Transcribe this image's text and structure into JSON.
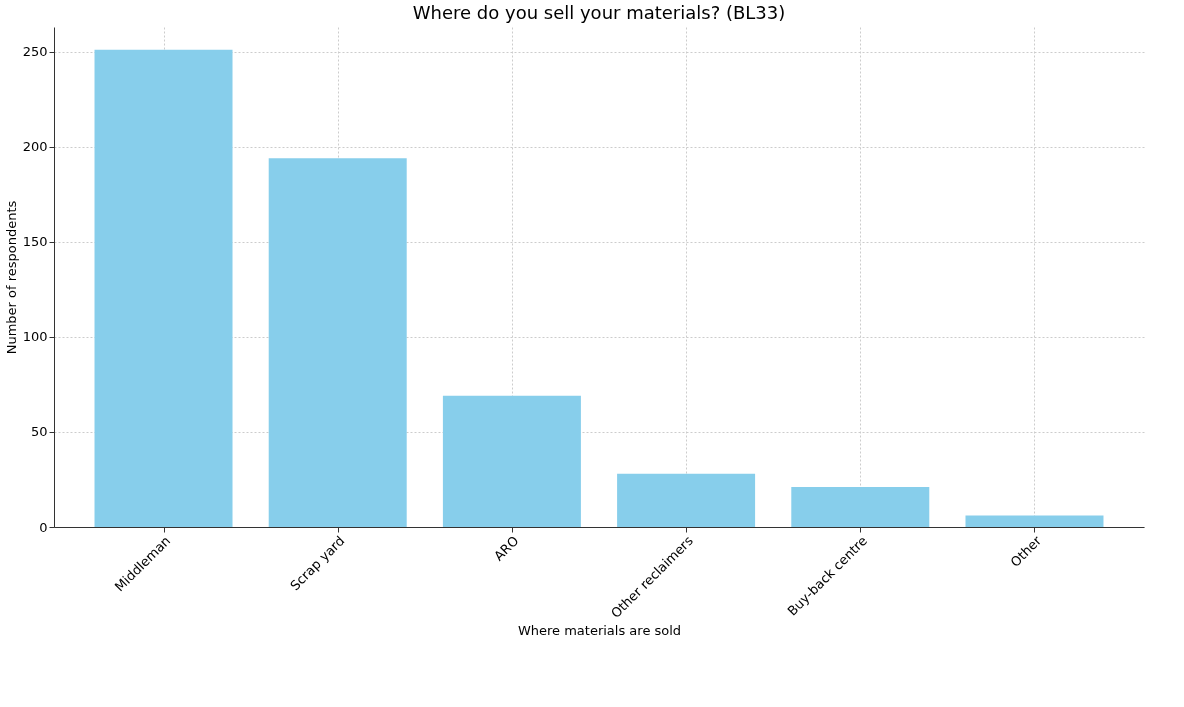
{
  "chart_data": {
    "type": "bar",
    "title": "Where do you sell your materials? (BL33)",
    "xlabel": "Where materials are sold",
    "ylabel": "Number of respondents",
    "categories": [
      "Middleman",
      "Scrap yard",
      "ARO",
      "Other reclaimers",
      "Buy-back centre",
      "Other"
    ],
    "values": [
      251,
      194,
      69,
      28,
      21,
      6
    ],
    "color": "#87ceeb",
    "ylim": [
      0,
      263
    ],
    "yticks": [
      0,
      50,
      100,
      150,
      200,
      250
    ],
    "grid": true
  }
}
